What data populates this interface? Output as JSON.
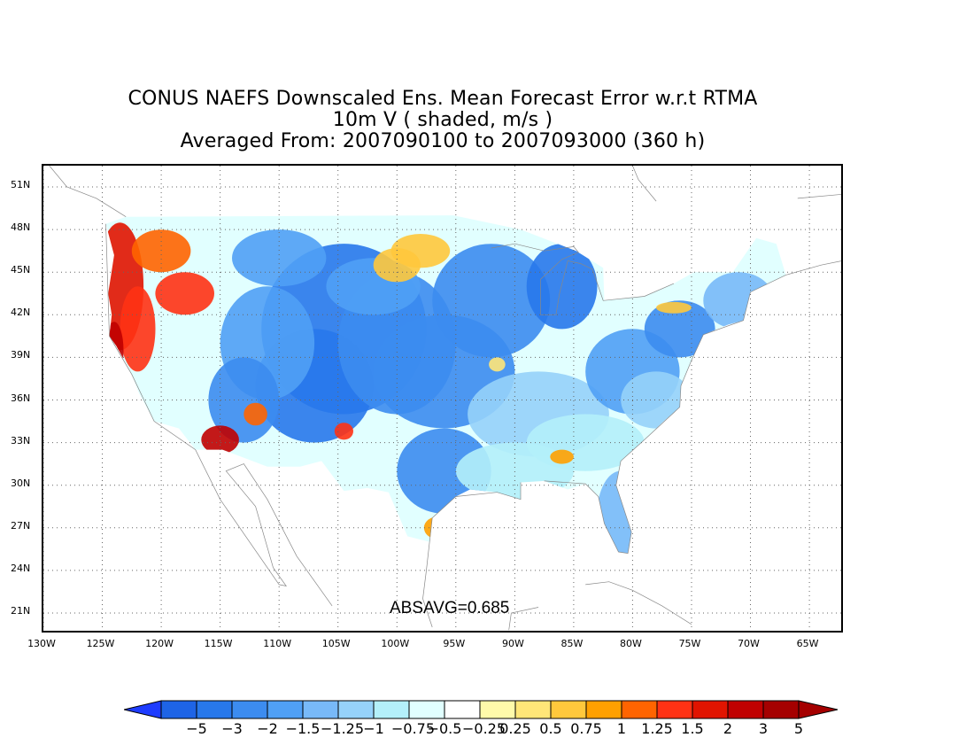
{
  "title": {
    "line1": "CONUS NAEFS Downscaled Ens. Mean Forecast Error w.r.t RTMA",
    "line2": "10m V ( shaded, m/s )",
    "line3": "Averaged From: 2007090100 to 2007093000 (360 h)"
  },
  "map": {
    "lon_range": [
      -130,
      -62
    ],
    "lat_range": [
      19.5,
      52.5
    ],
    "lat_ticks": [
      "51N",
      "48N",
      "45N",
      "42N",
      "39N",
      "36N",
      "33N",
      "30N",
      "27N",
      "24N",
      "21N"
    ],
    "lat_values": [
      51,
      48,
      45,
      42,
      39,
      36,
      33,
      30,
      27,
      24,
      21
    ],
    "lon_ticks": [
      "130W",
      "125W",
      "120W",
      "115W",
      "110W",
      "105W",
      "100W",
      "95W",
      "90W",
      "85W",
      "80W",
      "75W",
      "70W",
      "65W"
    ],
    "lon_values": [
      -130,
      -125,
      -120,
      -115,
      -110,
      -105,
      -100,
      -95,
      -90,
      -85,
      -80,
      -75,
      -70,
      -65
    ],
    "grid": true,
    "background": "#ffffff",
    "coastline_color": "#888888"
  },
  "absavg": "ABSAVG=0.685",
  "colorbar": {
    "labels": [
      "-5",
      "-3",
      "-2",
      "-1.5",
      "-1.25",
      "-1",
      "-0.75",
      "-0.5",
      "-0.25",
      "0.25",
      "0.5",
      "0.75",
      "1",
      "1.25",
      "1.5",
      "2",
      "3",
      "5"
    ],
    "colors": [
      "#1e64e6",
      "#2878eb",
      "#3c8cf0",
      "#50a0f5",
      "#78b9f8",
      "#96d2fa",
      "#b4f0fa",
      "#e1ffff",
      "#ffffff",
      "#fffaaa",
      "#ffe678",
      "#ffc83c",
      "#ffa000",
      "#ff6400",
      "#ff3214",
      "#e11400",
      "#c00000",
      "#a50000"
    ],
    "left_arrow_color": "#1e3cff",
    "right_arrow_color": "#a50000"
  }
}
